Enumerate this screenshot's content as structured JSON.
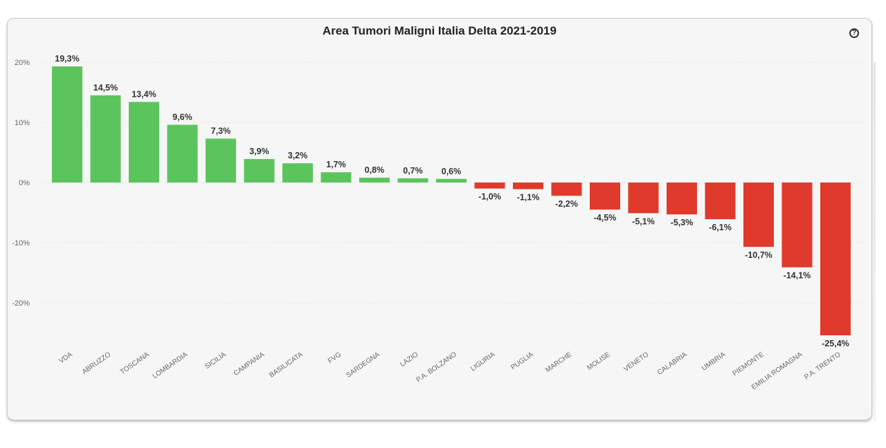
{
  "chart_data": {
    "type": "bar",
    "title": "Area Tumori Maligni Italia Delta 2021-2019",
    "categories": [
      "VDA",
      "ABRUZZO",
      "TOSCANA",
      "LOMBARDIA",
      "SICILIA",
      "CAMPANIA",
      "BASILICATA",
      "FVG",
      "SARDEGNA",
      "LAZIO",
      "P.A. BOLZANO",
      "LIGURIA",
      "PUGLIA",
      "MARCHE",
      "MOLISE",
      "VENETO",
      "CALABRIA",
      "UMBRIA",
      "PIEMONTE",
      "EMILIA ROMAGNA",
      "P.A. TRENTO"
    ],
    "values": [
      19.3,
      14.5,
      13.4,
      9.6,
      7.3,
      3.9,
      3.2,
      1.7,
      0.8,
      0.7,
      0.6,
      -1.0,
      -1.1,
      -2.2,
      -4.5,
      -5.1,
      -5.3,
      -6.1,
      -10.7,
      -14.1,
      -25.4
    ],
    "data_labels": [
      "19,3%",
      "14,5%",
      "13,4%",
      "9,6%",
      "7,3%",
      "3,9%",
      "3,2%",
      "1,7%",
      "0,8%",
      "0,7%",
      "0,6%",
      "-1,0%",
      "-1,1%",
      "-2,2%",
      "-4,5%",
      "-5,1%",
      "-5,3%",
      "-6,1%",
      "-10,7%",
      "-14,1%",
      "-25,4%"
    ],
    "yticks": [
      20,
      10,
      0,
      -10,
      -20
    ],
    "ytick_labels": [
      "20%",
      "10%",
      "0%",
      "-10%",
      "-20%"
    ],
    "ylim": [
      -26,
      21
    ],
    "xlabel": "",
    "ylabel": "",
    "grid": true,
    "colors": {
      "positive": "#5cc45c",
      "negative": "#e03a2c"
    }
  },
  "help_icon": "question-circle-icon"
}
